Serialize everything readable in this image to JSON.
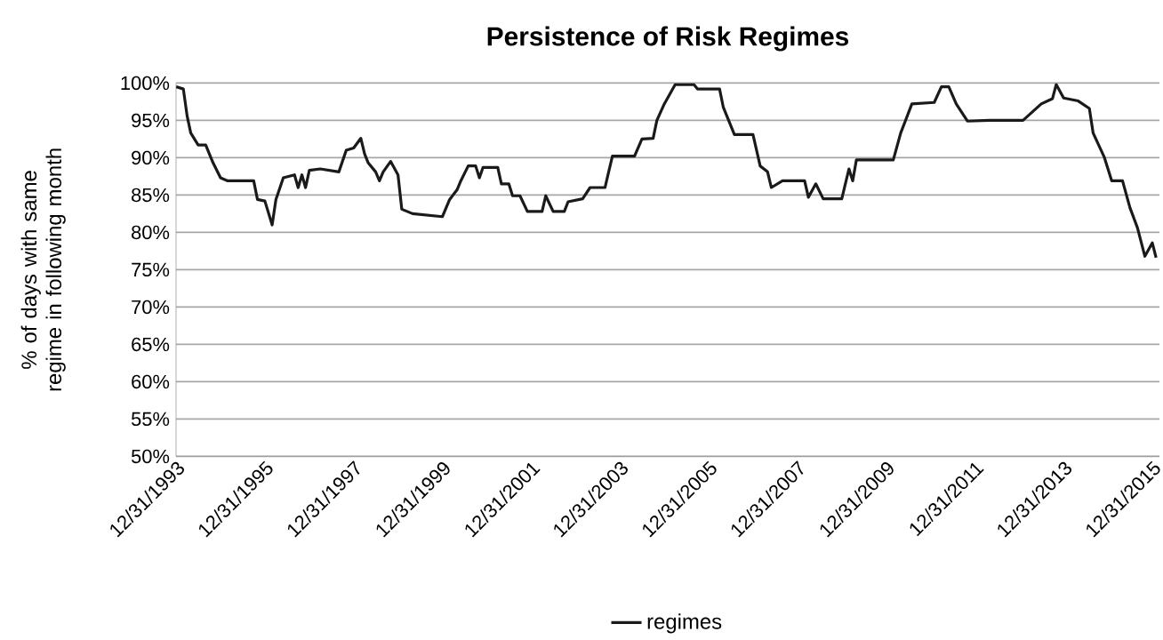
{
  "chart_data": {
    "type": "line",
    "title": "Persistence of Risk Regimes",
    "ylabel": "% of days with same regime in following month",
    "x": [
      "1994-01",
      "1994-03",
      "1994-04",
      "1994-05",
      "1994-07",
      "1994-09",
      "1994-11",
      "1995-01",
      "1995-03",
      "1995-10",
      "1995-11",
      "1996-01",
      "1996-03",
      "1996-04",
      "1996-06",
      "1996-09",
      "1996-10",
      "1996-11",
      "1996-12",
      "1997-01",
      "1997-04",
      "1997-09",
      "1997-11",
      "1998-01",
      "1998-03",
      "1998-04",
      "1998-05",
      "1998-07",
      "1998-08",
      "1998-09",
      "1998-11",
      "1999-01",
      "1999-02",
      "1999-05",
      "2000-01",
      "2000-03",
      "2000-05",
      "2000-06",
      "2000-08",
      "2000-10",
      "2000-11",
      "2000-12",
      "2001-04",
      "2001-05",
      "2001-07",
      "2001-08",
      "2001-10",
      "2001-12",
      "2002-04",
      "2002-05",
      "2002-07",
      "2002-10",
      "2002-11",
      "2003-03",
      "2003-05",
      "2003-09",
      "2003-10",
      "2003-11",
      "2004-05",
      "2004-07",
      "2004-10",
      "2004-11",
      "2005-01",
      "2005-04",
      "2005-09",
      "2005-10",
      "2006-04",
      "2006-05",
      "2006-08",
      "2007-01",
      "2007-03",
      "2007-05",
      "2007-06",
      "2007-09",
      "2008-03",
      "2008-04",
      "2008-06",
      "2008-08",
      "2009-01",
      "2009-03",
      "2009-04",
      "2009-05",
      "2010-03",
      "2010-05",
      "2010-08",
      "2011-02",
      "2011-04",
      "2011-06",
      "2011-08",
      "2011-11",
      "2012-05",
      "2013-02",
      "2013-07",
      "2013-10",
      "2013-11",
      "2014-01",
      "2014-05",
      "2014-08",
      "2014-09",
      "2014-12",
      "2015-02",
      "2015-05",
      "2015-07",
      "2015-09",
      "2015-11",
      "2016-01",
      "2016-02"
    ],
    "series": [
      {
        "name": "regimes",
        "color": "#1a1a1a",
        "values": [
          99.5,
          99.2,
          95.6,
          93.3,
          91.7,
          91.7,
          89.3,
          87.3,
          86.9,
          86.9,
          84.4,
          84.2,
          81.0,
          84.4,
          87.3,
          87.7,
          86.0,
          87.7,
          86.0,
          88.3,
          88.5,
          88.1,
          91.0,
          91.3,
          92.6,
          90.5,
          89.3,
          88.1,
          86.9,
          88.1,
          89.5,
          87.7,
          83.1,
          82.5,
          82.1,
          84.4,
          85.7,
          86.9,
          88.9,
          88.9,
          87.3,
          88.7,
          88.7,
          86.5,
          86.5,
          84.9,
          84.9,
          82.8,
          82.8,
          84.9,
          82.8,
          82.8,
          84.1,
          84.5,
          86.0,
          86.0,
          88.1,
          90.2,
          90.2,
          92.5,
          92.6,
          95.0,
          97.2,
          99.8,
          99.8,
          99.2,
          99.2,
          96.8,
          93.1,
          93.1,
          88.9,
          88.1,
          86.0,
          86.9,
          86.9,
          84.7,
          86.5,
          84.5,
          84.5,
          88.5,
          86.9,
          89.7,
          89.7,
          93.3,
          97.2,
          97.4,
          99.5,
          99.5,
          97.2,
          94.9,
          95.0,
          95.0,
          97.2,
          97.9,
          99.8,
          98.0,
          97.6,
          96.6,
          93.3,
          90.1,
          86.9,
          86.9,
          83.3,
          80.6,
          76.8,
          78.6,
          76.6
        ]
      }
    ],
    "xlim": [
      "1993-12-31",
      "2016-02-29"
    ],
    "xticks": [
      {
        "value": "1993-12-31",
        "label": "12/31/1993"
      },
      {
        "value": "1995-12-31",
        "label": "12/31/1995"
      },
      {
        "value": "1997-12-31",
        "label": "12/31/1997"
      },
      {
        "value": "1999-12-31",
        "label": "12/31/1999"
      },
      {
        "value": "2001-12-31",
        "label": "12/31/2001"
      },
      {
        "value": "2003-12-31",
        "label": "12/31/2003"
      },
      {
        "value": "2005-12-31",
        "label": "12/31/2005"
      },
      {
        "value": "2007-12-31",
        "label": "12/31/2007"
      },
      {
        "value": "2009-12-31",
        "label": "12/31/2009"
      },
      {
        "value": "2011-12-31",
        "label": "12/31/2011"
      },
      {
        "value": "2013-12-31",
        "label": "12/31/2013"
      },
      {
        "value": "2015-12-31",
        "label": "12/31/2015"
      }
    ],
    "ylim": [
      50,
      100
    ],
    "yticks": [
      {
        "value": 50,
        "label": "50%"
      },
      {
        "value": 55,
        "label": "55%"
      },
      {
        "value": 60,
        "label": "60%"
      },
      {
        "value": 65,
        "label": "65%"
      },
      {
        "value": 70,
        "label": "70%"
      },
      {
        "value": 75,
        "label": "75%"
      },
      {
        "value": 80,
        "label": "80%"
      },
      {
        "value": 85,
        "label": "85%"
      },
      {
        "value": 90,
        "label": "90%"
      },
      {
        "value": 95,
        "label": "95%"
      },
      {
        "value": 100,
        "label": "100%"
      }
    ],
    "grid": "y",
    "legend": "bottom"
  }
}
